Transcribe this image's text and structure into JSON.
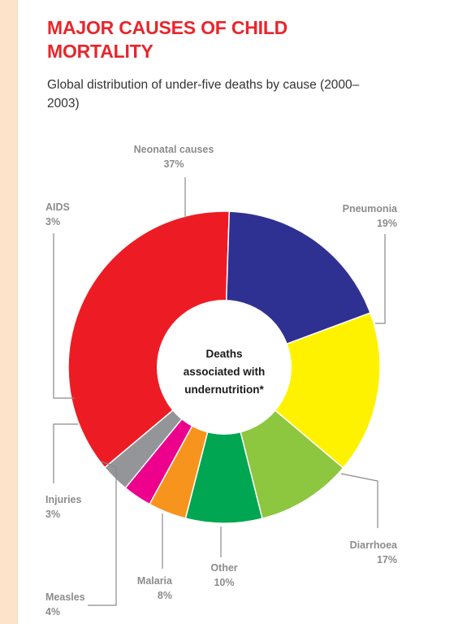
{
  "header": {
    "title": "MAJOR CAUSES OF CHILD MORTALITY",
    "subtitle": "Global distribution of under-five deaths by cause (2000–2003)"
  },
  "chart_data": {
    "type": "pie",
    "style": "donut",
    "center_label": [
      "Deaths",
      "associated with",
      "undernutrition*"
    ],
    "slices": [
      {
        "name": "Neonatal causes",
        "value": 37,
        "value_label": "37%",
        "color": "#ed1c24"
      },
      {
        "name": "Pneumonia",
        "value": 19,
        "value_label": "19%",
        "color": "#2e3192"
      },
      {
        "name": "Diarrhoea",
        "value": 17,
        "value_label": "17%",
        "color": "#fff200"
      },
      {
        "name": "Other",
        "value": 10,
        "value_label": "10%",
        "color": "#8dc63f"
      },
      {
        "name": "Malaria",
        "value": 8,
        "value_label": "8%",
        "color": "#00a651"
      },
      {
        "name": "Measles",
        "value": 4,
        "value_label": "4%",
        "color": "#f7941d"
      },
      {
        "name": "Injuries",
        "value": 3,
        "value_label": "3%",
        "color": "#ec008c"
      },
      {
        "name": "AIDS",
        "value": 3,
        "value_label": "3%",
        "color": "#939598"
      }
    ]
  }
}
